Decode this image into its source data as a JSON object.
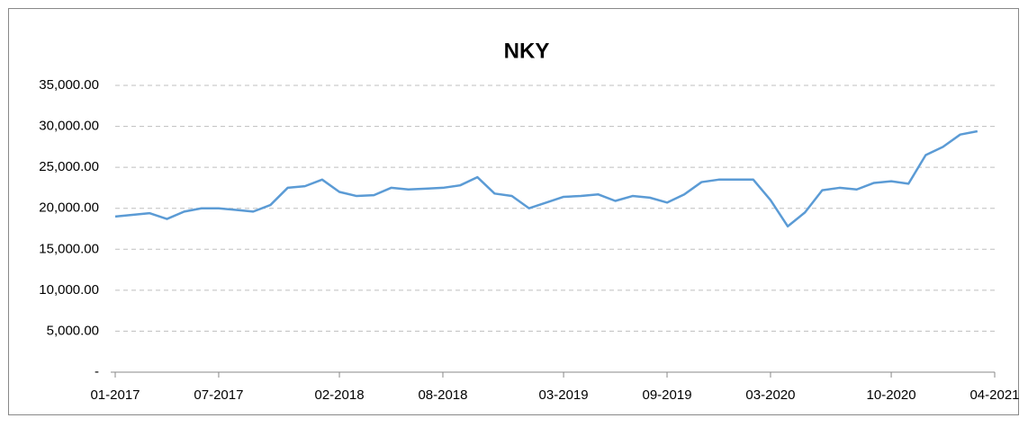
{
  "chart_data": {
    "type": "line",
    "title": "NKY",
    "x": [
      "01-2017",
      "02-2017",
      "03-2017",
      "04-2017",
      "05-2017",
      "06-2017",
      "07-2017",
      "08-2017",
      "09-2017",
      "10-2017",
      "11-2017",
      "12-2017",
      "01-2018",
      "02-2018",
      "03-2018",
      "04-2018",
      "05-2018",
      "06-2018",
      "07-2018",
      "08-2018",
      "09-2018",
      "10-2018",
      "11-2018",
      "12-2018",
      "01-2019",
      "02-2019",
      "03-2019",
      "04-2019",
      "05-2019",
      "06-2019",
      "07-2019",
      "08-2019",
      "09-2019",
      "10-2019",
      "11-2019",
      "12-2019",
      "01-2020",
      "02-2020",
      "03-2020",
      "04-2020",
      "05-2020",
      "06-2020",
      "07-2020",
      "08-2020",
      "09-2020",
      "10-2020",
      "11-2020",
      "12-2020",
      "01-2021",
      "02-2021",
      "03-2021"
    ],
    "values": [
      19000,
      19200,
      19400,
      18700,
      19600,
      20000,
      20000,
      19800,
      19600,
      20400,
      22500,
      22700,
      23500,
      22000,
      21500,
      21600,
      22500,
      22300,
      22400,
      22500,
      22800,
      23800,
      21800,
      21500,
      20000,
      20700,
      21400,
      21500,
      21700,
      20900,
      21500,
      21300,
      20700,
      21700,
      23200,
      23500,
      23500,
      23500,
      21000,
      17800,
      19500,
      22200,
      22500,
      22300,
      23100,
      23300,
      23000,
      26500,
      27500,
      29000,
      29400
    ],
    "color": "#5b9bd5",
    "xlim": [
      "01-2017",
      "04-2021"
    ],
    "xticks": [
      "01-2017",
      "07-2017",
      "02-2018",
      "08-2018",
      "03-2019",
      "09-2019",
      "03-2020",
      "10-2020",
      "04-2021"
    ],
    "ylim": [
      0,
      35000
    ],
    "yticks": [
      {
        "value": 0,
        "label": "-"
      },
      {
        "value": 5000,
        "label": "5,000.00"
      },
      {
        "value": 10000,
        "label": "10,000.00"
      },
      {
        "value": 15000,
        "label": "15,000.00"
      },
      {
        "value": 20000,
        "label": "20,000.00"
      },
      {
        "value": 25000,
        "label": "25,000.00"
      },
      {
        "value": 30000,
        "label": "30,000.00"
      },
      {
        "value": 35000,
        "label": "35,000.00"
      }
    ],
    "grid": true
  }
}
